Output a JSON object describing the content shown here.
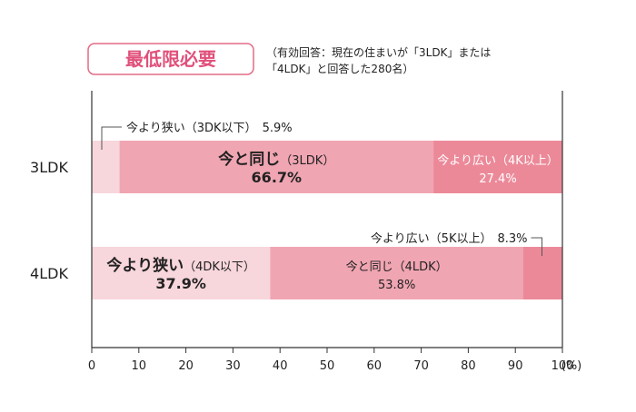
{
  "header": {
    "badge": "最低限必要",
    "note_line1": "（有効回答：現在の住まいが「3LDK」または",
    "note_line2": "「4LDK」と回答した280名）"
  },
  "colors": {
    "badge_border": "#e26b86",
    "badge_text": "#e0507a",
    "smaller": "#f7d6dc",
    "same": "#f0a5b2",
    "larger": "#ec8999",
    "axis": "#333333"
  },
  "chart_data": {
    "type": "bar",
    "orientation": "horizontal",
    "stacked": true,
    "xlim": [
      0,
      100
    ],
    "xticks": [
      0,
      10,
      20,
      30,
      40,
      50,
      60,
      70,
      80,
      90,
      100
    ],
    "xunit": "(%)",
    "categories": [
      "3LDK",
      "4LDK"
    ],
    "bars": [
      {
        "category": "3LDK",
        "segments": [
          {
            "value": 5.9,
            "label_main": "今より狭い",
            "label_sub": "（3DK以下）",
            "value_label": "5.9%",
            "color": "#f7d6dc",
            "callout": true
          },
          {
            "value": 66.7,
            "label_main": "今と同じ",
            "label_sub": "（3LDK）",
            "value_label": "66.7%",
            "color": "#f0a5b2",
            "emphasis": true
          },
          {
            "value": 27.4,
            "label_main": "今より広い",
            "label_sub": "（4K以上）",
            "value_label": "27.4%",
            "color": "#ec8999",
            "light_text": true
          }
        ]
      },
      {
        "category": "4LDK",
        "segments": [
          {
            "value": 37.9,
            "label_main": "今より狭い",
            "label_sub": "（4DK以下）",
            "value_label": "37.9%",
            "color": "#f7d6dc",
            "emphasis": true
          },
          {
            "value": 53.8,
            "label_main": "今と同じ",
            "label_sub": "（4LDK）",
            "value_label": "53.8%",
            "color": "#f0a5b2"
          },
          {
            "value": 8.3,
            "label_main": "今より広い",
            "label_sub": "（5K以上）",
            "value_label": "8.3%",
            "color": "#ec8999",
            "callout": true
          }
        ]
      }
    ]
  }
}
